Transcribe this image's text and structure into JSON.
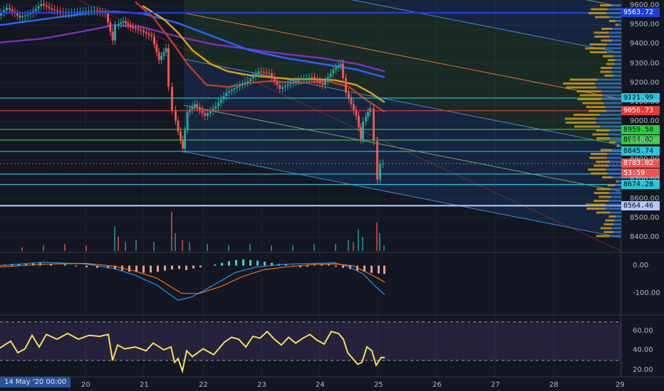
{
  "chart_data": [
    {
      "type": "candlestick",
      "panel": "price",
      "x_ticks": [
        "20",
        "21",
        "22",
        "23",
        "24",
        "25",
        "26",
        "27",
        "28",
        "29"
      ],
      "y_ticks": [
        "9600.00",
        "9500.00",
        "9400.00",
        "9300.00",
        "9200.00",
        "9100.00",
        "9000.00",
        "8900.00",
        "8800.00",
        "8700.00",
        "8600.00",
        "8500.00",
        "8400.00"
      ],
      "y_range": [
        8330,
        9630
      ],
      "last_price": 8783.02,
      "countdown": "53:59",
      "price_lines": [
        {
          "value": 9563.72,
          "label": "9563.72",
          "color": "#1e40d8"
        },
        {
          "value": 9121.99,
          "label": "9121.99",
          "color": "#26c6da"
        },
        {
          "value": 9056.73,
          "label": "9056.73",
          "color": "#e53935"
        },
        {
          "value": 8959.5,
          "label": "8959.50",
          "color": "#2ecc40"
        },
        {
          "value": 8904.82,
          "label": "8904.82",
          "color": "#2ecc40"
        },
        {
          "value": 8845.74,
          "label": "8845.74",
          "color": "#26c6da"
        },
        {
          "value": 8728.45,
          "label": "8728.45",
          "color": "#26c6da"
        },
        {
          "value": 8674.28,
          "label": "8674.28",
          "color": "#26c6da"
        },
        {
          "value": 8564.46,
          "label": "8564.46",
          "color": "#b3c7f7"
        }
      ],
      "price_series": [
        [
          0,
          9550
        ],
        [
          12,
          9590
        ],
        [
          30,
          9540
        ],
        [
          45,
          9560
        ],
        [
          60,
          9610
        ],
        [
          75,
          9580
        ],
        [
          95,
          9560
        ],
        [
          115,
          9570
        ],
        [
          135,
          9575
        ],
        [
          150,
          9560
        ],
        [
          160,
          9420
        ],
        [
          165,
          9500
        ],
        [
          175,
          9520
        ],
        [
          185,
          9490
        ],
        [
          200,
          9470
        ],
        [
          215,
          9440
        ],
        [
          225,
          9320
        ],
        [
          235,
          9380
        ],
        [
          240,
          9180
        ],
        [
          245,
          9060
        ],
        [
          252,
          8950
        ],
        [
          258,
          8860
        ],
        [
          265,
          9050
        ],
        [
          275,
          9090
        ],
        [
          290,
          9030
        ],
        [
          305,
          9080
        ],
        [
          320,
          9150
        ],
        [
          335,
          9180
        ],
        [
          350,
          9210
        ],
        [
          365,
          9260
        ],
        [
          380,
          9250
        ],
        [
          395,
          9170
        ],
        [
          410,
          9200
        ],
        [
          425,
          9220
        ],
        [
          440,
          9230
        ],
        [
          455,
          9190
        ],
        [
          470,
          9270
        ],
        [
          480,
          9300
        ],
        [
          488,
          9150
        ],
        [
          495,
          9090
        ],
        [
          502,
          9030
        ],
        [
          508,
          8910
        ],
        [
          512,
          9000
        ],
        [
          518,
          9050
        ],
        [
          523,
          9070
        ],
        [
          528,
          8900
        ],
        [
          532,
          8700
        ],
        [
          536,
          8780
        ],
        [
          540,
          8783
        ]
      ],
      "moving_averages": [
        {
          "color": "#7b2fbf",
          "points": [
            [
              0,
              9410
            ],
            [
              60,
              9430
            ],
            [
              120,
              9470
            ],
            [
              160,
              9500
            ],
            [
              200,
              9490
            ],
            [
              250,
              9440
            ],
            [
              300,
              9400
            ],
            [
              350,
              9375
            ],
            [
              400,
              9350
            ],
            [
              450,
              9330
            ],
            [
              500,
              9300
            ],
            [
              540,
              9260
            ]
          ]
        },
        {
          "color": "#2962ff",
          "points": [
            [
              0,
              9500
            ],
            [
              60,
              9530
            ],
            [
              120,
              9560
            ],
            [
              160,
              9570
            ],
            [
              200,
              9560
            ],
            [
              250,
              9510
            ],
            [
              300,
              9440
            ],
            [
              350,
              9370
            ],
            [
              400,
              9330
            ],
            [
              450,
              9300
            ],
            [
              500,
              9270
            ],
            [
              540,
              9230
            ]
          ]
        },
        {
          "color": "#d4a017",
          "points": [
            [
              200,
              9600
            ],
            [
              230,
              9530
            ],
            [
              250,
              9460
            ],
            [
              270,
              9370
            ],
            [
              295,
              9300
            ],
            [
              320,
              9260
            ],
            [
              350,
              9240
            ],
            [
              380,
              9230
            ],
            [
              410,
              9220
            ],
            [
              440,
              9220
            ],
            [
              470,
              9215
            ],
            [
              500,
              9190
            ],
            [
              520,
              9150
            ],
            [
              540,
              9100
            ]
          ]
        },
        {
          "color": "#c0392b",
          "points": [
            [
              190,
              9620
            ],
            [
              215,
              9540
            ],
            [
              240,
              9420
            ],
            [
              265,
              9290
            ],
            [
              290,
              9190
            ],
            [
              320,
              9180
            ],
            [
              350,
              9200
            ],
            [
              380,
              9210
            ],
            [
              420,
              9200
            ],
            [
              460,
              9210
            ],
            [
              490,
              9180
            ],
            [
              515,
              9110
            ],
            [
              540,
              9050
            ]
          ]
        }
      ],
      "channel": {
        "base_start": [
          258,
          8845
        ],
        "base_end": [
          870,
          8400
        ],
        "offsets": [
          0,
          65,
          130,
          195,
          260,
          325,
          390
        ],
        "fills": [
          "#2962ff",
          "#2e7d32",
          "#2e7d32",
          "#2962ff"
        ]
      },
      "volume": [
        [
          30,
          2
        ],
        [
          60,
          3
        ],
        [
          90,
          4
        ],
        [
          120,
          3
        ],
        [
          160,
          14
        ],
        [
          165,
          8
        ],
        [
          175,
          5
        ],
        [
          190,
          6
        ],
        [
          215,
          5
        ],
        [
          240,
          22
        ],
        [
          245,
          10
        ],
        [
          255,
          6
        ],
        [
          265,
          5
        ],
        [
          290,
          4
        ],
        [
          320,
          3
        ],
        [
          350,
          4
        ],
        [
          380,
          3
        ],
        [
          410,
          3
        ],
        [
          440,
          4
        ],
        [
          470,
          4
        ],
        [
          488,
          6
        ],
        [
          495,
          5
        ],
        [
          502,
          12
        ],
        [
          508,
          8
        ],
        [
          528,
          16
        ],
        [
          532,
          10
        ],
        [
          538,
          3
        ]
      ]
    },
    {
      "type": "macd",
      "panel": "macd",
      "y_ticks": [
        "0.00",
        "-100.00"
      ],
      "y_range": [
        -170,
        40
      ],
      "macd_line": [
        [
          0,
          0
        ],
        [
          60,
          12
        ],
        [
          120,
          6
        ],
        [
          160,
          -10
        ],
        [
          190,
          -35
        ],
        [
          220,
          -70
        ],
        [
          250,
          -125
        ],
        [
          270,
          -112
        ],
        [
          300,
          -70
        ],
        [
          330,
          -25
        ],
        [
          360,
          -5
        ],
        [
          400,
          5
        ],
        [
          440,
          8
        ],
        [
          470,
          10
        ],
        [
          490,
          -5
        ],
        [
          510,
          -30
        ],
        [
          525,
          -70
        ],
        [
          540,
          -105
        ]
      ],
      "signal_line": [
        [
          0,
          -5
        ],
        [
          60,
          5
        ],
        [
          120,
          8
        ],
        [
          160,
          -2
        ],
        [
          190,
          -20
        ],
        [
          220,
          -45
        ],
        [
          255,
          -100
        ],
        [
          280,
          -100
        ],
        [
          310,
          -75
        ],
        [
          340,
          -40
        ],
        [
          370,
          -15
        ],
        [
          400,
          -5
        ],
        [
          440,
          4
        ],
        [
          470,
          6
        ],
        [
          495,
          0
        ],
        [
          515,
          -25
        ],
        [
          530,
          -45
        ],
        [
          540,
          -60
        ]
      ],
      "histogram": [
        [
          5,
          4
        ],
        [
          15,
          6
        ],
        [
          25,
          5
        ],
        [
          35,
          8
        ],
        [
          45,
          10
        ],
        [
          55,
          12
        ],
        [
          70,
          6
        ],
        [
          90,
          4
        ],
        [
          105,
          -3
        ],
        [
          120,
          -6
        ],
        [
          135,
          -8
        ],
        [
          150,
          -10
        ],
        [
          160,
          -14
        ],
        [
          170,
          -18
        ],
        [
          180,
          -22
        ],
        [
          190,
          -24
        ],
        [
          200,
          -26
        ],
        [
          210,
          -25
        ],
        [
          220,
          -22
        ],
        [
          230,
          -18
        ],
        [
          240,
          -14
        ],
        [
          250,
          -12
        ],
        [
          260,
          -16
        ],
        [
          270,
          -10
        ],
        [
          280,
          -6
        ],
        [
          300,
          4
        ],
        [
          310,
          10
        ],
        [
          320,
          16
        ],
        [
          330,
          20
        ],
        [
          340,
          22
        ],
        [
          350,
          20
        ],
        [
          360,
          18
        ],
        [
          370,
          14
        ],
        [
          380,
          10
        ],
        [
          390,
          6
        ],
        [
          400,
          5
        ],
        [
          410,
          -3
        ],
        [
          420,
          -6
        ],
        [
          430,
          -4
        ],
        [
          440,
          3
        ],
        [
          450,
          5
        ],
        [
          460,
          4
        ],
        [
          470,
          -4
        ],
        [
          480,
          -8
        ],
        [
          490,
          -12
        ],
        [
          500,
          -18
        ],
        [
          510,
          -22
        ],
        [
          520,
          -26
        ],
        [
          530,
          -28
        ],
        [
          538,
          -30
        ]
      ]
    },
    {
      "type": "line",
      "panel": "rsi",
      "y_ticks": [
        "60.00",
        "40.00",
        "20.00"
      ],
      "y_range": [
        13,
        75
      ],
      "levels": [
        70,
        30
      ],
      "rsi": [
        [
          0,
          43
        ],
        [
          15,
          50
        ],
        [
          25,
          38
        ],
        [
          35,
          42
        ],
        [
          45,
          56
        ],
        [
          55,
          44
        ],
        [
          65,
          57
        ],
        [
          80,
          52
        ],
        [
          95,
          58
        ],
        [
          110,
          52
        ],
        [
          125,
          56
        ],
        [
          140,
          55
        ],
        [
          152,
          57
        ],
        [
          158,
          30
        ],
        [
          165,
          46
        ],
        [
          175,
          42
        ],
        [
          190,
          44
        ],
        [
          205,
          40
        ],
        [
          215,
          48
        ],
        [
          230,
          41
        ],
        [
          240,
          44
        ],
        [
          245,
          28
        ],
        [
          250,
          32
        ],
        [
          256,
          19
        ],
        [
          262,
          40
        ],
        [
          270,
          34
        ],
        [
          285,
          42
        ],
        [
          300,
          36
        ],
        [
          315,
          49
        ],
        [
          325,
          54
        ],
        [
          335,
          52
        ],
        [
          345,
          44
        ],
        [
          355,
          55
        ],
        [
          365,
          53
        ],
        [
          375,
          60
        ],
        [
          385,
          52
        ],
        [
          395,
          46
        ],
        [
          405,
          54
        ],
        [
          415,
          48
        ],
        [
          425,
          53
        ],
        [
          435,
          57
        ],
        [
          445,
          51
        ],
        [
          455,
          47
        ],
        [
          465,
          60
        ],
        [
          475,
          58
        ],
        [
          482,
          52
        ],
        [
          488,
          38
        ],
        [
          495,
          32
        ],
        [
          502,
          26
        ],
        [
          508,
          28
        ],
        [
          515,
          44
        ],
        [
          522,
          40
        ],
        [
          528,
          25
        ],
        [
          535,
          33
        ],
        [
          540,
          33
        ]
      ]
    }
  ],
  "timestamp": "14 May '20   00:00"
}
